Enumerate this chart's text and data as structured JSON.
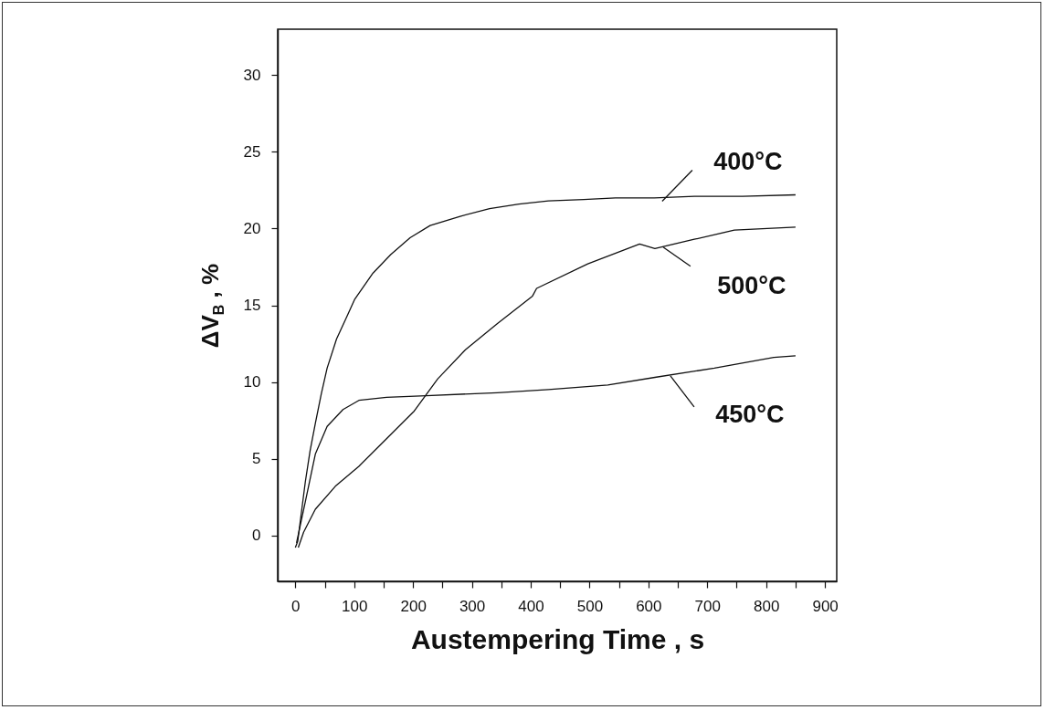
{
  "chart_data": {
    "type": "line",
    "xlabel": "Austempering Time , s",
    "ylabel": "ΔV$_{B}$ , %",
    "xlim": [
      -30,
      920
    ],
    "ylim": [
      -3,
      33
    ],
    "xticks": [
      0,
      {
        "value": 50,
        "label": null
      },
      100,
      {
        "value": 150,
        "label": null
      },
      200,
      {
        "value": 250,
        "label": null
      },
      300,
      {
        "value": 350,
        "label": null
      },
      400,
      {
        "value": 450,
        "label": null
      },
      500,
      {
        "value": 550,
        "label": null
      },
      600,
      {
        "value": 650,
        "label": null
      },
      700,
      {
        "value": 750,
        "label": null
      },
      800,
      {
        "value": 850,
        "label": null
      },
      900
    ],
    "yticks": [
      0,
      5,
      10,
      15,
      20,
      25,
      30
    ],
    "grid": false,
    "marker": "none",
    "line_style": "solid",
    "series": [
      {
        "name": "400°C",
        "color": "#111111",
        "x": [
          0,
          4,
          11,
          17,
          25,
          34,
          44,
          54,
          70,
          88,
          101,
          132,
          162,
          195,
          229,
          280,
          330,
          380,
          430,
          490,
          544,
          610,
          678,
          760,
          850
        ],
        "values": [
          -0.8,
          -0.4,
          1.7,
          3.5,
          5.5,
          7.3,
          9.2,
          10.9,
          12.8,
          14.3,
          15.4,
          17.1,
          18.3,
          19.4,
          20.2,
          20.8,
          21.3,
          21.6,
          21.8,
          21.9,
          22.0,
          22.0,
          22.1,
          22.1,
          22.2
        ]
      },
      {
        "name": "500°C",
        "color": "#111111",
        "x": [
          5,
          14,
          34,
          68,
          108,
          155,
          202,
          242,
          289,
          343,
          403,
          410,
          497,
          585,
          611,
          678,
          746,
          850
        ],
        "values": [
          -0.8,
          0.2,
          1.7,
          3.2,
          4.5,
          6.3,
          8.1,
          10.2,
          12.1,
          13.8,
          15.6,
          16.1,
          17.7,
          19.0,
          18.7,
          19.3,
          19.9,
          20.1
        ]
      },
      {
        "name": "450°C",
        "color": "#111111",
        "x": [
          2,
          7,
          17,
          34,
          54,
          81,
          108,
          155,
          222,
          343,
          430,
          531,
          611,
          712,
          813,
          850
        ],
        "values": [
          -0.5,
          0.4,
          2.2,
          5.3,
          7.1,
          8.2,
          8.8,
          9.0,
          9.1,
          9.3,
          9.5,
          9.8,
          10.3,
          10.9,
          11.6,
          11.7
        ]
      }
    ]
  }
}
